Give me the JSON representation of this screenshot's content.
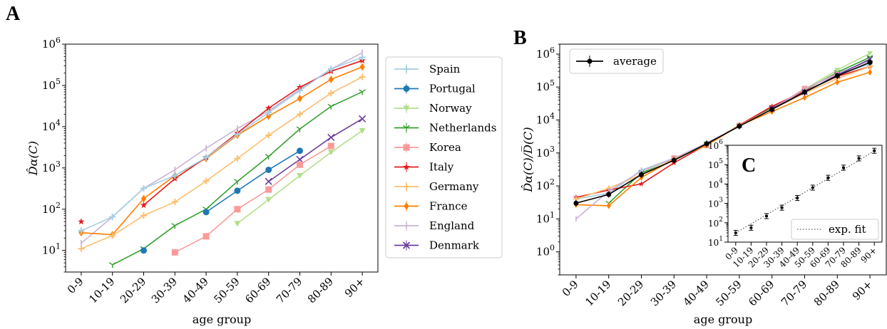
{
  "panels": {
    "a": "A",
    "b": "B",
    "c": "C"
  },
  "colors": {
    "Spain": "#a6cee3",
    "Portugal": "#1f78b4",
    "Norway": "#b2df8a",
    "Netherlands": "#33a02c",
    "Korea": "#fb9a99",
    "Italy": "#e31a1c",
    "Germany": "#fdbf6f",
    "France": "#ff7f00",
    "England": "#cab2d6",
    "Denmark": "#6a3d9a",
    "average": "#000000",
    "fit": "#555555"
  },
  "chart_data": [
    {
      "type": "line",
      "panel": "A",
      "yscale": "log",
      "ylim": [
        3,
        1000000
      ],
      "xlabel": "age group",
      "ylabel": "D̂α(C)",
      "categories": [
        "0-9",
        "10-19",
        "20-29",
        "30-39",
        "40-49",
        "50-59",
        "60-69",
        "70-79",
        "80-89",
        "90+"
      ],
      "yticks": [
        "10^1",
        "10^2",
        "10^3",
        "10^4",
        "10^5",
        "10^6"
      ],
      "legend_position": "right-outside",
      "series": [
        {
          "name": "Spain",
          "marker": "plus",
          "values": [
            30,
            65,
            320,
            650,
            1800,
            6500,
            22000,
            75000,
            250000,
            480000
          ]
        },
        {
          "name": "Portugal",
          "marker": "circle",
          "values": [
            null,
            null,
            10,
            null,
            85,
            280,
            900,
            2600,
            null,
            null
          ]
        },
        {
          "name": "Norway",
          "marker": "tri",
          "values": [
            null,
            null,
            null,
            null,
            null,
            45,
            170,
            650,
            2400,
            8000
          ]
        },
        {
          "name": "Netherlands",
          "marker": "y",
          "values": [
            null,
            4.5,
            11,
            40,
            100,
            470,
            1900,
            8800,
            31000,
            70000
          ]
        },
        {
          "name": "Korea",
          "marker": "square",
          "values": [
            null,
            null,
            null,
            9,
            22,
            100,
            300,
            1200,
            3400,
            null
          ]
        },
        {
          "name": "Italy",
          "marker": "star",
          "values": [
            50,
            null,
            125,
            550,
            1800,
            7000,
            28000,
            90000,
            220000,
            400000
          ]
        },
        {
          "name": "Germany",
          "marker": "plus",
          "values": [
            11,
            23,
            70,
            150,
            480,
            1700,
            6200,
            20000,
            65000,
            160000
          ]
        },
        {
          "name": "France",
          "marker": "diamond",
          "values": [
            27,
            24,
            180,
            650,
            1700,
            6200,
            18000,
            48000,
            140000,
            280000
          ]
        },
        {
          "name": "England",
          "marker": "bar",
          "values": [
            15,
            65,
            320,
            900,
            3000,
            9000,
            24000,
            80000,
            250000,
            620000
          ]
        },
        {
          "name": "Denmark",
          "marker": "x",
          "values": [
            null,
            null,
            null,
            null,
            null,
            null,
            470,
            1600,
            5500,
            15500
          ]
        }
      ]
    },
    {
      "type": "line",
      "panel": "B",
      "yscale": "log",
      "ylim": [
        0.2,
        2000000
      ],
      "xlabel": "age group",
      "ylabel": "D̂α(C)/D̅(C)",
      "categories": [
        "0-9",
        "10-19",
        "20-29",
        "30-39",
        "40-49",
        "50-59",
        "60-69",
        "70-79",
        "80-89",
        "90+"
      ],
      "yticks": [
        "10^0",
        "10^1",
        "10^2",
        "10^3",
        "10^4",
        "10^5",
        "10^6"
      ],
      "legend_position": "top-left",
      "series": [
        {
          "name": "average",
          "marker": "circle",
          "values": [
            30,
            55,
            220,
            600,
            1900,
            6500,
            21000,
            70000,
            220000,
            560000
          ]
        }
      ],
      "countries": {
        "Spain": [
          40,
          60,
          300,
          700,
          1900,
          6500,
          22000,
          70000,
          230000,
          500000
        ],
        "Norway": [
          null,
          null,
          null,
          null,
          null,
          6500,
          22000,
          85000,
          330000,
          1050000
        ],
        "Netherlands": [
          null,
          30,
          250,
          600,
          1900,
          6500,
          24000,
          80000,
          280000,
          800000
        ],
        "Korea": [
          null,
          null,
          null,
          700,
          1700,
          6800,
          22000,
          90000,
          240000,
          null
        ],
        "Italy": [
          45,
          75,
          115,
          500,
          1800,
          7000,
          26000,
          75000,
          210000,
          420000
        ],
        "Germany": [
          40,
          85,
          220,
          650,
          1900,
          6800,
          21000,
          65000,
          180000,
          420000
        ],
        "France": [
          27,
          25,
          180,
          650,
          1700,
          6800,
          18000,
          48000,
          140000,
          280000
        ],
        "England": [
          10,
          70,
          280,
          680,
          2000,
          6500,
          22000,
          85000,
          260000,
          620000
        ],
        "Denmark": [
          null,
          null,
          null,
          null,
          null,
          null,
          22000,
          70000,
          230000,
          700000
        ]
      }
    },
    {
      "type": "scatter",
      "panel": "C",
      "yscale": "log",
      "ylim": [
        10,
        1000000
      ],
      "categories": [
        "0-9",
        "10-19",
        "20-29",
        "30-39",
        "40-49",
        "50-59",
        "60-69",
        "70-79",
        "80-89",
        "90+"
      ],
      "yticks": [
        "10^1",
        "10^2",
        "10^3",
        "10^4",
        "10^5",
        "10^6"
      ],
      "legend_position": "bottom-right",
      "series": [
        {
          "name": "average",
          "values": [
            30,
            55,
            220,
            600,
            1900,
            6500,
            21000,
            70000,
            210000,
            520000
          ]
        },
        {
          "name": "exp. fit",
          "line": "dotted",
          "values": [
            30,
            88,
            260,
            760,
            2200,
            6500,
            19000,
            56000,
            165000,
            520000
          ]
        }
      ]
    }
  ]
}
